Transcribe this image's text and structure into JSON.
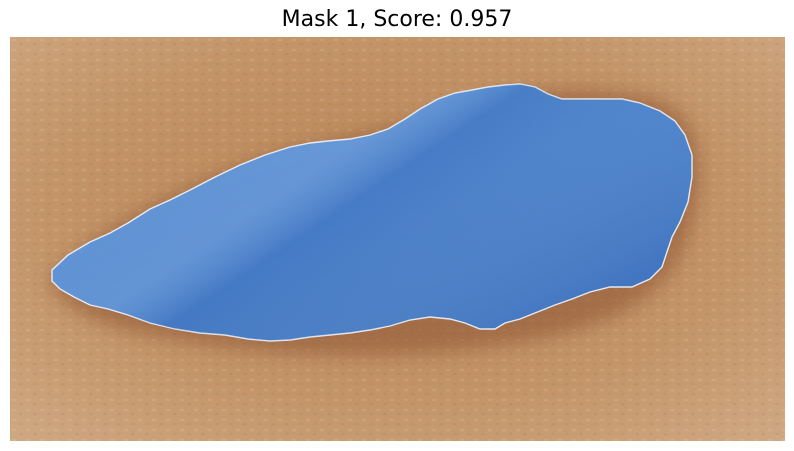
{
  "figure": {
    "title": "Mask 1, Score: 0.957"
  },
  "image": {
    "subject": "skin-with-segmentation-mask",
    "colors": {
      "skin_light": "#caa27a",
      "skin_mid": "#b98a5f",
      "skin_dark": "#a06d46",
      "wound_rim": "#8a4b2c",
      "mask_fill": "#4a86d4",
      "mask_fill_dark": "#2f64b0",
      "mask_outline": "#e8eef8"
    }
  }
}
